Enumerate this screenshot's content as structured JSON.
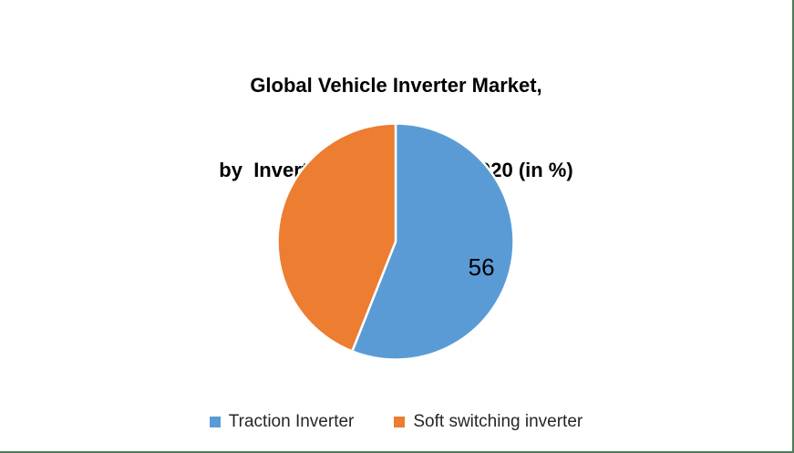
{
  "page": {
    "background": "#ffffff",
    "frame_border_color": "#4F7B58"
  },
  "chart": {
    "title_lines": [
      "Global Vehicle Inverter Market,",
      "by  Inverter Type Share in 2020 (in %)"
    ]
  },
  "chart_data": {
    "type": "pie",
    "title": "Global Vehicle Inverter Market, by  Inverter Type Share in 2020 (in %)",
    "categories": [
      "Traction Inverter",
      "Soft switching inverter"
    ],
    "values": [
      56,
      44
    ],
    "colors": [
      "#5B9BD5",
      "#ED7D31"
    ],
    "units": "%",
    "start_angle_deg": 0,
    "direction": "clockwise",
    "slice_border_color": "#ffffff",
    "data_labels": [
      "56",
      ""
    ],
    "data_label_color": "#000000",
    "legend_position": "bottom"
  },
  "legend": {
    "items": [
      {
        "label": "Traction Inverter",
        "color": "#5B9BD5"
      },
      {
        "label": "Soft switching inverter",
        "color": "#ED7D31"
      }
    ]
  }
}
